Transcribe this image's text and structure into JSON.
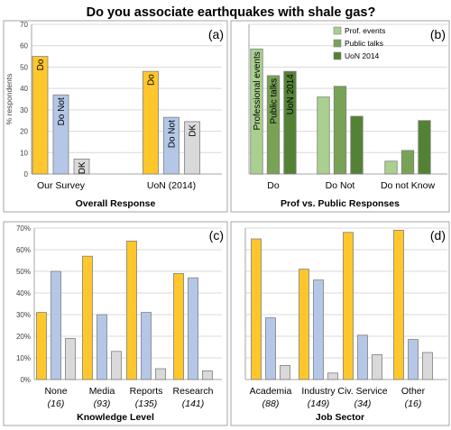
{
  "figure_title": "Do you associate earthquakes with shale gas?",
  "colors": {
    "yellow": "#ffc72c",
    "blue": "#b4c7e7",
    "gray": "#d9d9d9",
    "green_light": "#a9d08e",
    "green_mid": "#78a356",
    "green_dark": "#548235",
    "outline": "#7f7f7f",
    "grid": "#d9d9d9",
    "axis": "#a6a6a6"
  },
  "chart_data": [
    {
      "panel": "(a)",
      "type": "bar",
      "title": "",
      "xlabel": "Overall Response",
      "ylabel": "% respondents",
      "ylim": [
        0,
        70
      ],
      "yticks": [
        "0",
        "10",
        "20",
        "30",
        "40",
        "50",
        "60",
        "70"
      ],
      "grid": true,
      "categories": [
        "Our Survey",
        "UoN (2014)"
      ],
      "series": [
        {
          "name": "Do",
          "values": [
            55,
            48
          ],
          "labels": [
            "Do",
            "Do"
          ]
        },
        {
          "name": "Do Not",
          "values": [
            37,
            26.5
          ],
          "labels": [
            "Do Not",
            "Do Not"
          ]
        },
        {
          "name": "DK",
          "values": [
            7,
            24.5
          ],
          "labels": [
            "DK",
            "DK"
          ]
        }
      ]
    },
    {
      "panel": "(b)",
      "type": "bar",
      "title": "",
      "xlabel": "Prof vs. Public Responses",
      "ylabel": "",
      "ylim": [
        0,
        70
      ],
      "grid": true,
      "legend": "top-right",
      "categories": [
        "Do",
        "Do Not",
        "Do not Know"
      ],
      "series": [
        {
          "name": "Prof. events",
          "values": [
            58.5,
            36,
            6
          ],
          "labels": [
            "Professional events",
            "",
            ""
          ]
        },
        {
          "name": "Public talks",
          "values": [
            46,
            41,
            11
          ],
          "labels": [
            "Public talks",
            "",
            ""
          ]
        },
        {
          "name": "UoN 2014",
          "values": [
            48,
            27,
            25
          ],
          "labels": [
            "UoN 2014",
            "",
            ""
          ]
        }
      ]
    },
    {
      "panel": "(c)",
      "type": "bar",
      "title": "",
      "xlabel": "Knowledge Level",
      "ylabel": "",
      "ylim": [
        0,
        70
      ],
      "yticks": [
        "0%",
        "10%",
        "20%",
        "30%",
        "40%",
        "50%",
        "60%",
        "70%"
      ],
      "grid": true,
      "categories": [
        "None",
        "Media",
        "Reports",
        "Research"
      ],
      "counts": [
        "(16)",
        "(93)",
        "(135)",
        "(141)"
      ],
      "series": [
        {
          "values": [
            31,
            57,
            64,
            49
          ]
        },
        {
          "values": [
            50,
            30,
            31,
            47
          ]
        },
        {
          "values": [
            19,
            13,
            5,
            4
          ]
        }
      ]
    },
    {
      "panel": "(d)",
      "type": "bar",
      "title": "",
      "xlabel": "Job Sector",
      "ylabel": "",
      "ylim": [
        0,
        70
      ],
      "grid": true,
      "categories": [
        "Academia",
        "Industry",
        "Civ. Service",
        "Other"
      ],
      "counts": [
        "(88)",
        "(149)",
        "(34)",
        "(16)"
      ],
      "series": [
        {
          "values": [
            65,
            51,
            68,
            69
          ]
        },
        {
          "values": [
            28.5,
            46,
            20.5,
            18.5
          ]
        },
        {
          "values": [
            6.5,
            3,
            11.5,
            12.5
          ]
        }
      ]
    }
  ]
}
